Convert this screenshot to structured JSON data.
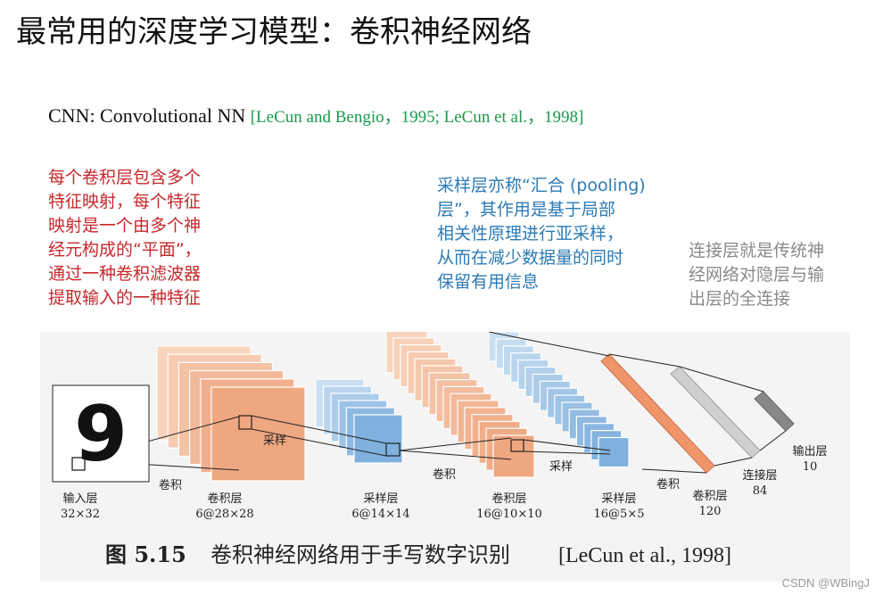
{
  "title": "最常用的深度学习模型：卷积神经网络",
  "subtitle": {
    "text": "CNN: Convolutional NN ",
    "reference": "[LeCun and Bengio，1995; LeCun et al.，1998]"
  },
  "notes": {
    "conv_layer": {
      "lines": [
        "每个卷积层包含多个",
        "特征映射，每个特征",
        "映射是一个由多个神",
        "经元构成的“平面”，",
        "通过一种卷积滤波器",
        "提取输入的一种特征"
      ],
      "color": "#c5282c"
    },
    "pooling_layer": {
      "lines": [
        "采样层亦称“汇合 (pooling)",
        "层”，其作用是基于局部",
        "相关性原理进行亚采样，",
        "从而在减少数据量的同时",
        "保留有用信息"
      ],
      "color": "#2c7ab5"
    },
    "fc_layer": {
      "lines": [
        "连接层就是传统神",
        "经网络对隐层与输",
        "出层的全连接"
      ],
      "color": "#8a8a8a"
    }
  },
  "figure": {
    "input_digit": "9",
    "arrow_labels": {
      "conv1": "卷积",
      "pool1": "采样",
      "conv2": "卷积",
      "pool2": "采样",
      "conv3": "卷积"
    },
    "layers": [
      {
        "name": "输入层",
        "size": "32×32"
      },
      {
        "name": "卷积层",
        "size": "6@28×28"
      },
      {
        "name": "采样层",
        "size": "6@14×14"
      },
      {
        "name": "卷积层",
        "size": "16@10×10"
      },
      {
        "name": "采样层",
        "size": "16@5×5"
      },
      {
        "name": "卷积层",
        "size": "120"
      },
      {
        "name": "连接层",
        "size": "84"
      },
      {
        "name": "输出层",
        "size": "10"
      }
    ],
    "caption": {
      "label": "图 5.15",
      "text": "卷积神经网络用于手写数字识别",
      "reference": "[LeCun et al., 1998]"
    },
    "colors": {
      "conv": "#efa780",
      "conv_light": "#f9dcc8",
      "pool": "#7fb0de",
      "pool_light": "#d7e7f5",
      "conv120": "#f0956a",
      "fc84": "#cfcfcf",
      "output": "#888888"
    }
  },
  "watermark": "CSDN @WBingJ"
}
